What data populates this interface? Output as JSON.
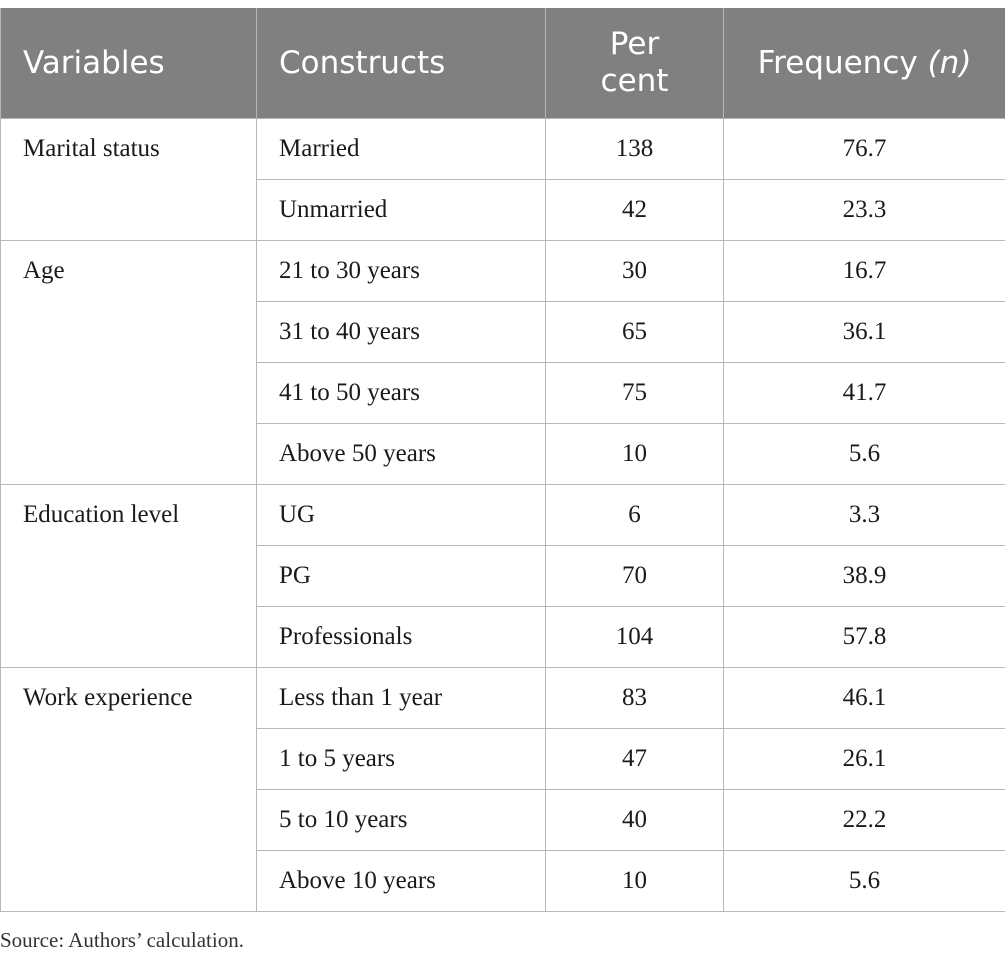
{
  "table": {
    "headers": {
      "variables": "Variables",
      "constructs": "Constructs",
      "percent_line1": "Per",
      "percent_line2": "cent",
      "frequency": "Frequency",
      "frequency_n": "(n)"
    },
    "groups": [
      {
        "variable": "Marital status",
        "rows": [
          {
            "construct": "Married",
            "percent": "138",
            "frequency": "76.7"
          },
          {
            "construct": "Unmarried",
            "percent": "42",
            "frequency": "23.3"
          }
        ]
      },
      {
        "variable": "Age",
        "rows": [
          {
            "construct": "21 to 30 years",
            "percent": "30",
            "frequency": "16.7"
          },
          {
            "construct": "31 to 40 years",
            "percent": "65",
            "frequency": "36.1"
          },
          {
            "construct": "41 to 50 years",
            "percent": "75",
            "frequency": "41.7"
          },
          {
            "construct": "Above 50 years",
            "percent": "10",
            "frequency": "5.6"
          }
        ]
      },
      {
        "variable": "Education level",
        "rows": [
          {
            "construct": "UG",
            "percent": "6",
            "frequency": "3.3"
          },
          {
            "construct": "PG",
            "percent": "70",
            "frequency": "38.9"
          },
          {
            "construct": "Professionals",
            "percent": "104",
            "frequency": "57.8"
          }
        ]
      },
      {
        "variable": "Work experience",
        "rows": [
          {
            "construct": "Less than 1 year",
            "percent": "83",
            "frequency": "46.1"
          },
          {
            "construct": "1 to 5 years",
            "percent": "47",
            "frequency": "26.1"
          },
          {
            "construct": "5 to 10 years",
            "percent": "40",
            "frequency": "22.2"
          },
          {
            "construct": "Above 10 years",
            "percent": "10",
            "frequency": "5.6"
          }
        ]
      }
    ]
  },
  "source": "Source: Authors’ calculation."
}
